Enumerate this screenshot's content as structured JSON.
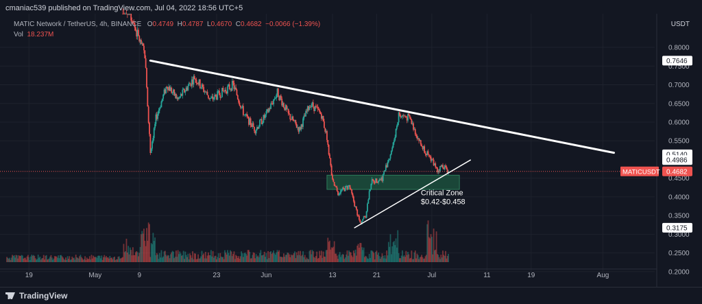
{
  "header": {
    "published_line": "cmaniac539 published on TradingView.com, Jul 04, 2022 18:56 UTC+5"
  },
  "legend": {
    "symbol": "MATIC Network / TetherUS, 4h, BINANCE",
    "open_label": "O",
    "open": "0.4749",
    "high_label": "H",
    "high": "0.4787",
    "low_label": "L",
    "low": "0.4670",
    "close_label": "C",
    "close": "0.4682",
    "change": "−0.0066 (−1.39%)",
    "vol_label": "Vol",
    "vol_value": "18.237M"
  },
  "axis": {
    "currency": "USDT"
  },
  "footer": {
    "brand": "TradingView"
  },
  "colors": {
    "background": "#131722",
    "up": "#26a69a",
    "down": "#ef5350",
    "zone": "#1e5f45",
    "line": "#ffffff"
  },
  "chart_data": {
    "type": "candlestick",
    "ylim": [
      0.185,
      0.835
    ],
    "y_ticks": [
      "0.8000",
      "0.7500",
      "0.7000",
      "0.6500",
      "0.6000",
      "0.5500",
      "0.4500",
      "0.4000",
      "0.3500",
      "0.3000",
      "0.2500",
      "0.2000"
    ],
    "x_ticks": [
      "19",
      "May",
      "9",
      "23",
      "Jun",
      "13",
      "21",
      "Jul",
      "11",
      "19",
      "Aug"
    ],
    "price_labels": [
      {
        "text": "0.7646",
        "value": 0.7646,
        "style": "white"
      },
      {
        "text": "0.5140",
        "value": 0.514,
        "style": "white"
      },
      {
        "text": "0.4986",
        "value": 0.4986,
        "style": "white"
      },
      {
        "text": "MATICUSDT",
        "value": 0.4682,
        "style": "red-tag"
      },
      {
        "text": "0.4682",
        "value": 0.4682,
        "style": "red"
      },
      {
        "text": "0.3175",
        "value": 0.3175,
        "style": "white"
      }
    ],
    "annotations": {
      "zone_title": "Critical Zone",
      "zone_range": "$0.42-$0.458",
      "zone_low": 0.42,
      "zone_high": 0.458
    },
    "price_path": [
      {
        "d": "2022-04-19",
        "v": 1.01
      },
      {
        "d": "2022-05-07",
        "v": 0.9
      },
      {
        "d": "2022-05-10",
        "v": 0.78
      },
      {
        "d": "2022-05-11",
        "v": 0.52
      },
      {
        "d": "2022-05-12",
        "v": 0.61
      },
      {
        "d": "2022-05-14",
        "v": 0.7
      },
      {
        "d": "2022-05-16",
        "v": 0.66
      },
      {
        "d": "2022-05-19",
        "v": 0.72
      },
      {
        "d": "2022-05-22",
        "v": 0.66
      },
      {
        "d": "2022-05-26",
        "v": 0.7
      },
      {
        "d": "2022-05-28",
        "v": 0.62
      },
      {
        "d": "2022-05-30",
        "v": 0.58
      },
      {
        "d": "2022-06-01",
        "v": 0.62
      },
      {
        "d": "2022-06-03",
        "v": 0.68
      },
      {
        "d": "2022-06-05",
        "v": 0.62
      },
      {
        "d": "2022-06-07",
        "v": 0.58
      },
      {
        "d": "2022-06-09",
        "v": 0.65
      },
      {
        "d": "2022-06-11",
        "v": 0.62
      },
      {
        "d": "2022-06-12",
        "v": 0.56
      },
      {
        "d": "2022-06-13",
        "v": 0.44
      },
      {
        "d": "2022-06-14",
        "v": 0.41
      },
      {
        "d": "2022-06-16",
        "v": 0.43
      },
      {
        "d": "2022-06-18",
        "v": 0.33
      },
      {
        "d": "2022-06-19",
        "v": 0.35
      },
      {
        "d": "2022-06-20",
        "v": 0.44
      },
      {
        "d": "2022-06-22",
        "v": 0.45
      },
      {
        "d": "2022-06-24",
        "v": 0.54
      },
      {
        "d": "2022-06-25",
        "v": 0.62
      },
      {
        "d": "2022-06-27",
        "v": 0.61
      },
      {
        "d": "2022-06-29",
        "v": 0.54
      },
      {
        "d": "2022-07-01",
        "v": 0.5
      },
      {
        "d": "2022-07-02",
        "v": 0.47
      },
      {
        "d": "2022-07-03",
        "v": 0.485
      },
      {
        "d": "2022-07-04",
        "v": 0.468
      }
    ],
    "lines": [
      {
        "name": "descending-resistance",
        "from": {
          "d": "2022-05-11",
          "v": 0.7646
        },
        "to": {
          "d": "2022-08-03",
          "v": 0.518
        },
        "width": 3
      },
      {
        "name": "ascending-support",
        "from": {
          "d": "2022-06-17",
          "v": 0.3175
        },
        "to": {
          "d": "2022-07-08",
          "v": 0.4986
        },
        "width": 1.5
      }
    ],
    "zone_band": {
      "from": "2022-06-12",
      "to": "2022-07-06"
    },
    "current_price": 0.4682,
    "volume_spikes": [
      {
        "d": "2022-05-07",
        "v": 0.35
      },
      {
        "d": "2022-05-10",
        "v": 1.0
      },
      {
        "d": "2022-05-11",
        "v": 0.7
      },
      {
        "d": "2022-06-13",
        "v": 0.5
      },
      {
        "d": "2022-06-18",
        "v": 0.35
      },
      {
        "d": "2022-06-24",
        "v": 0.85
      },
      {
        "d": "2022-07-01",
        "v": 0.9
      }
    ]
  }
}
